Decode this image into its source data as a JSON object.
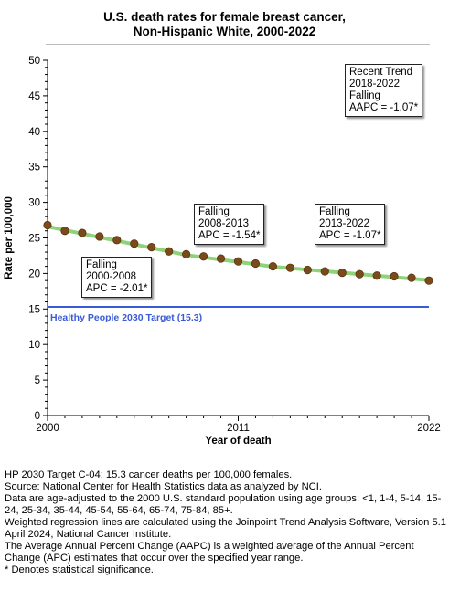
{
  "title": {
    "line1": "U.S. death rates for female breast cancer,",
    "line2": "Non-Hispanic White,  2000-2022"
  },
  "chart_data": {
    "type": "line",
    "title": "U.S. death rates for female breast cancer, Non-Hispanic White, 2000-2022",
    "xlabel": "Year of death",
    "ylabel": "Rate per 100,000",
    "xlim": [
      2000,
      2022
    ],
    "ylim": [
      0,
      50
    ],
    "x_ticks": [
      "2000",
      "2011",
      "2022"
    ],
    "y_ticks": [
      "0",
      "5",
      "10",
      "15",
      "20",
      "25",
      "30",
      "35",
      "40",
      "45",
      "50"
    ],
    "grid": false,
    "x": [
      2000,
      2001,
      2002,
      2003,
      2004,
      2005,
      2006,
      2007,
      2008,
      2009,
      2010,
      2011,
      2012,
      2013,
      2014,
      2015,
      2016,
      2017,
      2018,
      2019,
      2020,
      2021,
      2022
    ],
    "series": [
      {
        "kind": "observed",
        "color": "#7a4a1a",
        "values": [
          26.8,
          26.0,
          25.7,
          25.2,
          24.7,
          24.2,
          23.7,
          23.1,
          22.7,
          22.4,
          22.1,
          21.7,
          21.4,
          21.0,
          20.8,
          20.5,
          20.3,
          20.1,
          19.9,
          19.7,
          19.6,
          19.4,
          19.0
        ]
      },
      {
        "kind": "regression",
        "color": "#8ed37a",
        "segments": [
          {
            "from": 2000,
            "to": 2008,
            "y0": 26.6,
            "y1": 22.6
          },
          {
            "from": 2008,
            "to": 2013,
            "y0": 22.6,
            "y1": 20.96
          },
          {
            "from": 2013,
            "to": 2022,
            "y0": 20.96,
            "y1": 19.05
          }
        ]
      }
    ],
    "target": {
      "value": 15.3,
      "label": "Healthy People 2030 Target (15.3)",
      "color": "#3a5bd9"
    },
    "annotations": [
      {
        "id": "seg1",
        "lines": [
          "Falling",
          "2000-2008",
          "APC = -2.01*"
        ]
      },
      {
        "id": "seg2",
        "lines": [
          "Falling",
          "2008-2013",
          "APC = -1.54*"
        ]
      },
      {
        "id": "seg3",
        "lines": [
          "Falling",
          "2013-2022",
          "APC = -1.07*"
        ]
      },
      {
        "id": "recent",
        "lines": [
          "Recent Trend",
          "2018-2022",
          "Falling",
          "AAPC = -1.07*"
        ]
      }
    ]
  },
  "notes": [
    "HP 2030 Target C-04: 15.3 cancer deaths per 100,000 females.",
    "Source: National Center for Health Statistics data as analyzed by NCI.",
    "Data are age-adjusted to the 2000 U.S. standard population using age groups: <1, 1-4, 5-14, 15-24, 25-34, 35-44, 45-54, 55-64, 65-74, 75-84, 85+.",
    "Weighted regression lines are calculated using the Joinpoint Trend Analysis Software, Version 5.1 April 2024, National Cancer Institute.",
    "The Average Annual Percent Change (AAPC) is a weighted average of the Annual Percent Change (APC) estimates that occur over the specified year range.",
    "* Denotes statistical significance."
  ]
}
